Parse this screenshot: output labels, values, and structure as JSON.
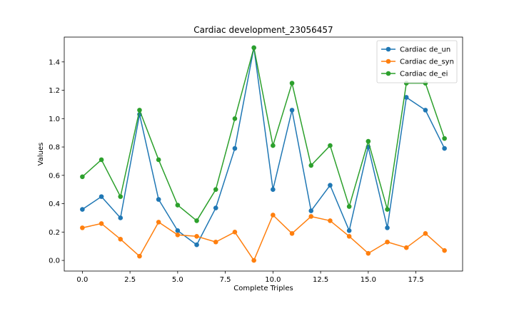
{
  "chart_data": {
    "type": "line",
    "title": "Cardiac development_23056457",
    "xlabel": "Complete Triples",
    "ylabel": "Values",
    "xlim": [
      -0.95,
      19.95
    ],
    "ylim": [
      -0.075,
      1.575
    ],
    "x": [
      0,
      1,
      2,
      3,
      4,
      5,
      6,
      7,
      8,
      9,
      10,
      11,
      12,
      13,
      14,
      15,
      16,
      17,
      18,
      19
    ],
    "xticks": [
      0.0,
      2.5,
      5.0,
      7.5,
      10.0,
      12.5,
      15.0,
      17.5
    ],
    "xtick_labels": [
      "0.0",
      "2.5",
      "5.0",
      "7.5",
      "10.0",
      "12.5",
      "15.0",
      "17.5"
    ],
    "yticks": [
      0.0,
      0.2,
      0.4,
      0.6,
      0.8,
      1.0,
      1.2,
      1.4
    ],
    "ytick_labels": [
      "0.0",
      "0.2",
      "0.4",
      "0.6",
      "0.8",
      "1.0",
      "1.2",
      "1.4"
    ],
    "grid": false,
    "legend_position": "top-right",
    "series": [
      {
        "name": "Cardiac de_un",
        "color": "#1f77b4",
        "values": [
          0.36,
          0.45,
          0.3,
          1.03,
          0.43,
          0.21,
          0.11,
          0.37,
          0.79,
          1.5,
          0.5,
          1.06,
          0.35,
          0.53,
          0.21,
          0.8,
          0.23,
          1.15,
          1.06,
          0.79
        ]
      },
      {
        "name": "Cardiac de_syn",
        "color": "#ff7f0e",
        "values": [
          0.23,
          0.26,
          0.15,
          0.03,
          0.27,
          0.18,
          0.17,
          0.13,
          0.2,
          0.0,
          0.32,
          0.19,
          0.31,
          0.28,
          0.17,
          0.05,
          0.13,
          0.09,
          0.19,
          0.07
        ]
      },
      {
        "name": "Cardiac de_ei",
        "color": "#2ca02c",
        "values": [
          0.59,
          0.71,
          0.45,
          1.06,
          0.71,
          0.39,
          0.28,
          0.5,
          1.0,
          1.5,
          0.81,
          1.25,
          0.67,
          0.81,
          0.38,
          0.84,
          0.36,
          1.25,
          1.25,
          0.86
        ]
      }
    ]
  }
}
